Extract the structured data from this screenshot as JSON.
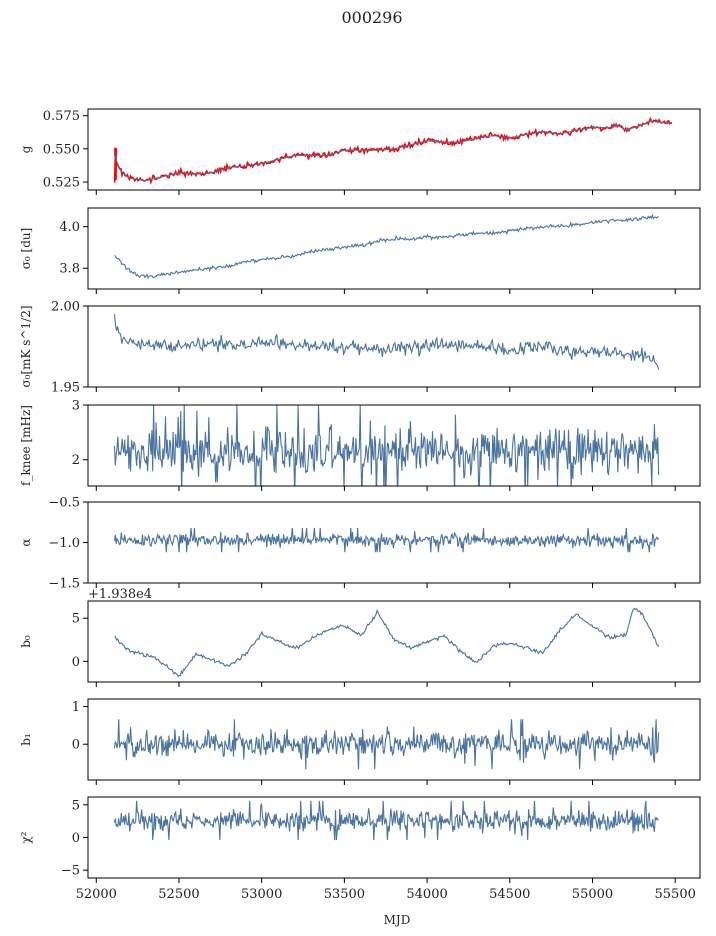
{
  "figure": {
    "title": "000296",
    "xlabel": "MJD",
    "colors": {
      "series": "#4a73a0",
      "overlay": "#ff0000",
      "frame": "#000000"
    }
  },
  "chart_data": [
    {
      "type": "line",
      "name": "g",
      "ylabel": "g",
      "xlim": [
        51950,
        55650
      ],
      "ylim": [
        0.519,
        0.58
      ],
      "yticks": [
        0.525,
        0.55,
        0.575
      ],
      "ytick_labels": [
        "0.525",
        "0.550",
        "0.575"
      ],
      "x": [
        52110,
        52125,
        52150,
        52200,
        52300,
        52400,
        52500,
        52600,
        52700,
        52800,
        52900,
        53000,
        53100,
        53200,
        53300,
        53400,
        53500,
        53600,
        53700,
        53800,
        53900,
        54000,
        54100,
        54200,
        54300,
        54400,
        54500,
        54600,
        54700,
        54800,
        54900,
        55000,
        55100,
        55150,
        55200,
        55250,
        55300,
        55350,
        55400,
        55480
      ],
      "y": [
        0.548,
        0.54,
        0.533,
        0.528,
        0.526,
        0.529,
        0.532,
        0.531,
        0.532,
        0.536,
        0.537,
        0.539,
        0.542,
        0.545,
        0.545,
        0.545,
        0.549,
        0.549,
        0.549,
        0.55,
        0.553,
        0.556,
        0.555,
        0.555,
        0.558,
        0.56,
        0.558,
        0.561,
        0.563,
        0.561,
        0.564,
        0.566,
        0.566,
        0.568,
        0.564,
        0.566,
        0.568,
        0.571,
        0.57,
        0.569
      ],
      "overlay": {
        "color": "#ff0000",
        "x_start": 52110,
        "x_end": 55480,
        "initial_spike": [
          0.551,
          0.523
        ]
      }
    },
    {
      "type": "line",
      "name": "sigma0_du",
      "ylabel": "σ₀ [du]",
      "xlim": [
        51950,
        55650
      ],
      "ylim": [
        3.7,
        4.09
      ],
      "yticks": [
        3.8,
        4.0
      ],
      "ytick_labels": [
        "3.8",
        "4.0"
      ],
      "x": [
        52110,
        52150,
        52200,
        52250,
        52300,
        52400,
        52500,
        52600,
        52700,
        52800,
        52900,
        53000,
        53100,
        53200,
        53300,
        53400,
        53500,
        53600,
        53700,
        53800,
        53900,
        54000,
        54100,
        54200,
        54300,
        54400,
        54500,
        54600,
        54700,
        54800,
        54900,
        55000,
        55100,
        55200,
        55300,
        55400
      ],
      "y": [
        3.86,
        3.83,
        3.79,
        3.765,
        3.76,
        3.77,
        3.78,
        3.79,
        3.8,
        3.81,
        3.83,
        3.84,
        3.85,
        3.86,
        3.88,
        3.89,
        3.9,
        3.91,
        3.93,
        3.94,
        3.94,
        3.95,
        3.95,
        3.96,
        3.97,
        3.97,
        3.98,
        3.99,
        4.0,
        4.0,
        4.01,
        4.02,
        4.03,
        4.03,
        4.04,
        4.05
      ]
    },
    {
      "type": "line",
      "name": "sigma0_mK",
      "ylabel": "σ₀[mK s^1/2]",
      "xlim": [
        51950,
        55650
      ],
      "ylim": [
        1.95,
        2.0
      ],
      "yticks": [
        1.95,
        2.0
      ],
      "ytick_labels": [
        "1.95",
        "2.00"
      ],
      "x": [
        52110,
        52150,
        52300,
        52500,
        52700,
        52900,
        53100,
        53300,
        53500,
        53700,
        53900,
        54100,
        54300,
        54500,
        54700,
        54900,
        55100,
        55300,
        55400
      ],
      "y": [
        1.992,
        1.98,
        1.976,
        1.975,
        1.977,
        1.976,
        1.977,
        1.976,
        1.975,
        1.973,
        1.974,
        1.976,
        1.975,
        1.973,
        1.974,
        1.972,
        1.971,
        1.97,
        1.965
      ]
    },
    {
      "type": "line",
      "name": "fknee",
      "ylabel": "f_knee [mHz]",
      "xlim": [
        51950,
        55650
      ],
      "ylim": [
        1.52,
        3.0
      ],
      "yticks": [
        2,
        3
      ],
      "ytick_labels": [
        "2",
        "3"
      ],
      "mean": 2.15,
      "spread": 0.28,
      "noise": true
    },
    {
      "type": "line",
      "name": "alpha",
      "ylabel": "α",
      "xlim": [
        51950,
        55650
      ],
      "ylim": [
        -1.5,
        -0.5
      ],
      "yticks": [
        -1.5,
        -1.0,
        -0.5
      ],
      "ytick_labels": [
        "−1.5",
        "−1.0",
        "−0.5"
      ],
      "mean": -0.97,
      "spread": 0.05,
      "noise": true
    },
    {
      "type": "line",
      "name": "b0",
      "ylabel": "b₀",
      "xlim": [
        51950,
        55650
      ],
      "ylim": [
        -2.4,
        7.0
      ],
      "yticks": [
        0,
        5
      ],
      "ytick_labels": [
        "0",
        "5"
      ],
      "offset_text": "+1.938e4",
      "x": [
        52110,
        52200,
        52350,
        52500,
        52600,
        52800,
        52900,
        53000,
        53200,
        53400,
        53500,
        53600,
        53700,
        53800,
        53900,
        54100,
        54200,
        54300,
        54400,
        54500,
        54700,
        54800,
        54900,
        55100,
        55200,
        55250,
        55300,
        55400
      ],
      "y": [
        2.8,
        1.2,
        0.5,
        -1.7,
        0.8,
        -0.5,
        0.8,
        3.2,
        1.5,
        3.7,
        4.2,
        3.0,
        5.7,
        2.5,
        1.5,
        3.0,
        1.2,
        -0.2,
        1.8,
        2.1,
        1.0,
        3.5,
        5.5,
        2.8,
        3.0,
        6.2,
        5.5,
        1.8
      ]
    },
    {
      "type": "line",
      "name": "b1",
      "ylabel": "b₁",
      "xlim": [
        51950,
        55650
      ],
      "ylim": [
        -0.95,
        1.2
      ],
      "yticks": [
        0,
        1
      ],
      "ytick_labels": [
        "0",
        "1"
      ],
      "mean": 0.0,
      "spread": 0.22,
      "noise": true
    },
    {
      "type": "line",
      "name": "chi2",
      "ylabel": "χ²",
      "xlim": [
        51950,
        55650
      ],
      "ylim": [
        -6.2,
        6.2
      ],
      "yticks": [
        -5,
        0,
        5
      ],
      "ytick_labels": [
        "−5",
        "0",
        "5"
      ],
      "mean": 2.6,
      "spread": 1.0,
      "noise": true
    }
  ],
  "xaxis": {
    "ticks": [
      52000,
      52500,
      53000,
      53500,
      54000,
      54500,
      55000,
      55500
    ],
    "tick_labels": [
      "52000",
      "52500",
      "53000",
      "53500",
      "54000",
      "54500",
      "55000",
      "55500"
    ],
    "data_range": [
      52110,
      55400
    ]
  }
}
